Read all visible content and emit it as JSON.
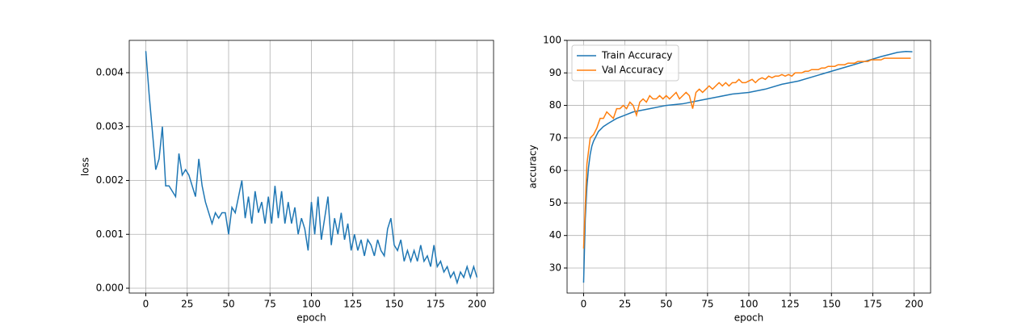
{
  "chart_data": [
    {
      "type": "line",
      "xlabel": "epoch",
      "ylabel": "loss",
      "grid": true,
      "xlim": [
        -10,
        210
      ],
      "ylim": [
        -9e-05,
        0.0046
      ],
      "xticks": [
        0,
        25,
        50,
        75,
        100,
        125,
        150,
        175,
        200
      ],
      "yticks": [
        {
          "value": 0,
          "label": "0.000"
        },
        {
          "value": 0.001,
          "label": "0.001"
        },
        {
          "value": 0.002,
          "label": "0.002"
        },
        {
          "value": 0.003,
          "label": "0.003"
        },
        {
          "value": 0.004,
          "label": "0.004"
        }
      ],
      "series": [
        {
          "color": "#1f77b4",
          "x": [
            0,
            2,
            4,
            6,
            8,
            10,
            12,
            14,
            16,
            18,
            20,
            22,
            24,
            26,
            28,
            30,
            32,
            34,
            36,
            38,
            40,
            42,
            44,
            46,
            48,
            50,
            52,
            54,
            56,
            58,
            60,
            62,
            64,
            66,
            68,
            70,
            72,
            74,
            76,
            78,
            80,
            82,
            84,
            86,
            88,
            90,
            92,
            94,
            96,
            98,
            100,
            102,
            104,
            106,
            108,
            110,
            112,
            114,
            116,
            118,
            120,
            122,
            124,
            126,
            128,
            130,
            132,
            134,
            136,
            138,
            140,
            142,
            144,
            146,
            148,
            150,
            152,
            154,
            156,
            158,
            160,
            162,
            164,
            166,
            168,
            170,
            172,
            174,
            176,
            178,
            180,
            182,
            184,
            186,
            188,
            190,
            192,
            194,
            196,
            198,
            200
          ],
          "values": [
            0.0044,
            0.0036,
            0.0029,
            0.0022,
            0.0024,
            0.003,
            0.0019,
            0.0019,
            0.0018,
            0.0017,
            0.0025,
            0.0021,
            0.0022,
            0.0021,
            0.0019,
            0.0017,
            0.0024,
            0.0019,
            0.0016,
            0.0014,
            0.0012,
            0.0014,
            0.0013,
            0.0014,
            0.0014,
            0.001,
            0.0015,
            0.0014,
            0.0017,
            0.002,
            0.0013,
            0.0017,
            0.0012,
            0.0018,
            0.0014,
            0.0016,
            0.0012,
            0.0017,
            0.0012,
            0.0019,
            0.0013,
            0.0018,
            0.0012,
            0.0016,
            0.0012,
            0.0015,
            0.001,
            0.0013,
            0.0011,
            0.0007,
            0.0016,
            0.001,
            0.0017,
            0.0009,
            0.0013,
            0.0017,
            0.0008,
            0.0013,
            0.001,
            0.0014,
            0.0009,
            0.0012,
            0.0007,
            0.001,
            0.0007,
            0.0009,
            0.0006,
            0.0009,
            0.0008,
            0.0006,
            0.0009,
            0.0007,
            0.0006,
            0.0011,
            0.0013,
            0.0008,
            0.0007,
            0.0009,
            0.0005,
            0.0007,
            0.0005,
            0.0007,
            0.0005,
            0.0008,
            0.0005,
            0.0006,
            0.0004,
            0.0008,
            0.0004,
            0.0005,
            0.0003,
            0.0004,
            0.0002,
            0.0003,
            0.0001,
            0.0003,
            0.0002,
            0.0004,
            0.0002,
            0.0004,
            0.0002
          ]
        }
      ]
    },
    {
      "type": "line",
      "xlabel": "epoch",
      "ylabel": "accuracy",
      "grid": true,
      "legend": "upper left",
      "xlim": [
        -10,
        210
      ],
      "ylim": [
        22.3,
        100
      ],
      "xticks": [
        0,
        25,
        50,
        75,
        100,
        125,
        150,
        175,
        200
      ],
      "yticks": [
        30,
        40,
        50,
        60,
        70,
        80,
        90,
        100
      ],
      "series": [
        {
          "name": "Train Accuracy",
          "color": "#1f77b4",
          "x": [
            0,
            1,
            2,
            3,
            4,
            5,
            6,
            7,
            8,
            9,
            10,
            12,
            15,
            20,
            25,
            30,
            40,
            50,
            60,
            70,
            80,
            90,
            100,
            110,
            120,
            130,
            140,
            150,
            160,
            170,
            180,
            190,
            195,
            199
          ],
          "values": [
            25.5,
            45,
            55,
            61,
            65,
            67.5,
            69,
            70,
            71,
            72,
            72.5,
            73.5,
            74.5,
            76,
            77,
            78,
            79,
            80,
            80.5,
            81.5,
            82.5,
            83.5,
            84,
            85,
            86.5,
            87.5,
            89,
            90.5,
            92,
            93.5,
            95,
            96.3,
            96.6,
            96.5
          ]
        },
        {
          "name": "Val Accuracy",
          "color": "#ff7f0e",
          "x": [
            0,
            2,
            4,
            6,
            8,
            10,
            12,
            14,
            16,
            18,
            20,
            22,
            24,
            26,
            28,
            30,
            32,
            34,
            36,
            38,
            40,
            42,
            44,
            46,
            48,
            50,
            52,
            54,
            56,
            58,
            60,
            62,
            64,
            66,
            68,
            70,
            72,
            74,
            76,
            78,
            80,
            82,
            84,
            86,
            88,
            90,
            92,
            94,
            96,
            98,
            100,
            102,
            104,
            106,
            108,
            110,
            112,
            114,
            116,
            118,
            120,
            122,
            124,
            126,
            128,
            130,
            132,
            134,
            136,
            138,
            140,
            142,
            144,
            146,
            148,
            150,
            152,
            154,
            156,
            158,
            160,
            162,
            164,
            166,
            168,
            170,
            172,
            174,
            176,
            178,
            180,
            182,
            184,
            186,
            188,
            190,
            192,
            194,
            196,
            198
          ],
          "values": [
            36,
            62,
            70,
            71,
            73,
            76,
            76,
            78,
            77,
            76,
            79,
            79,
            80,
            79,
            81,
            80,
            77,
            81,
            82,
            81,
            83,
            82,
            82,
            83,
            82,
            83,
            82,
            83,
            84,
            82,
            83,
            84,
            83,
            79,
            84,
            85,
            84,
            85,
            86,
            85,
            86,
            87,
            86,
            87,
            86,
            87,
            87,
            88,
            87,
            87,
            87.5,
            88,
            87,
            88,
            88.5,
            88,
            89,
            88.5,
            89,
            89,
            89.5,
            89,
            89.5,
            89,
            90,
            90,
            90,
            90.5,
            90.5,
            91,
            91,
            91,
            91.5,
            91.5,
            92,
            92,
            92,
            92.5,
            92.5,
            92.5,
            93,
            93,
            93,
            93.5,
            93.5,
            93.5,
            93.5,
            94,
            94,
            94,
            94,
            94.5,
            94.5,
            94.5,
            94.5,
            94.5,
            94.5,
            94.5,
            94.5,
            94.5
          ]
        }
      ]
    }
  ]
}
